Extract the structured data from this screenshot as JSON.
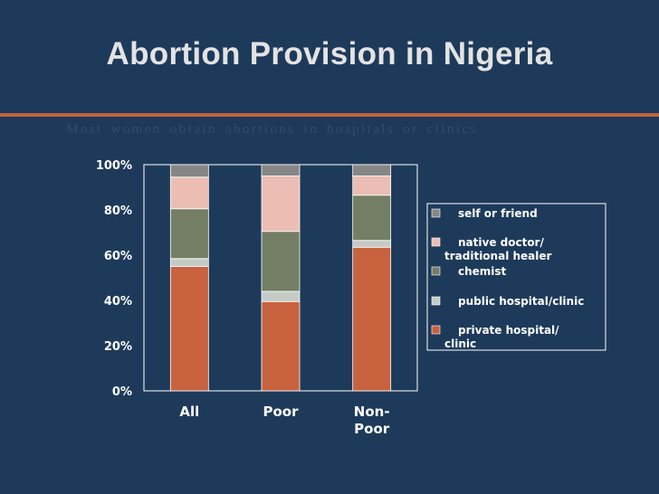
{
  "slide": {
    "title": "Abortion Provision in Nigeria",
    "subtitle": "Most women obtain abortions in hospitals or clinics",
    "accent_color": "#c1643f",
    "background_color": "#1e3a5a"
  },
  "chart_data": {
    "type": "bar",
    "stacked": true,
    "title": "Abortion Provision in Nigeria",
    "xlabel": "",
    "ylabel": "",
    "ylim": [
      0,
      100
    ],
    "y_ticks": [
      "0%",
      "20%",
      "40%",
      "60%",
      "80%",
      "100%"
    ],
    "categories": [
      [
        "All"
      ],
      [
        "Poor"
      ],
      [
        "Non-",
        "Poor"
      ]
    ],
    "series": [
      {
        "name": "private hospital/ clinic",
        "legend_lines": [
          "private hospital/",
          "clinic"
        ],
        "color": "#c8623f",
        "values": [
          55,
          39.5,
          63.5
        ]
      },
      {
        "name": "public hospital/clinic",
        "legend_lines": [
          "public hospital/clinic"
        ],
        "color": "#c4cbc6",
        "values": [
          3.5,
          4.5,
          3
        ]
      },
      {
        "name": "chemist",
        "legend_lines": [
          "chemist"
        ],
        "color": "#747e64",
        "values": [
          22,
          26.5,
          20
        ]
      },
      {
        "name": "native doctor/ traditional healer",
        "legend_lines": [
          "native doctor/",
          "traditional healer"
        ],
        "color": "#ebbdb3",
        "values": [
          14,
          24.5,
          8.5
        ]
      },
      {
        "name": "self or friend",
        "legend_lines": [
          "self or friend"
        ],
        "color": "#868686",
        "values": [
          5.5,
          5,
          5
        ]
      }
    ],
    "legend_position": "right"
  }
}
